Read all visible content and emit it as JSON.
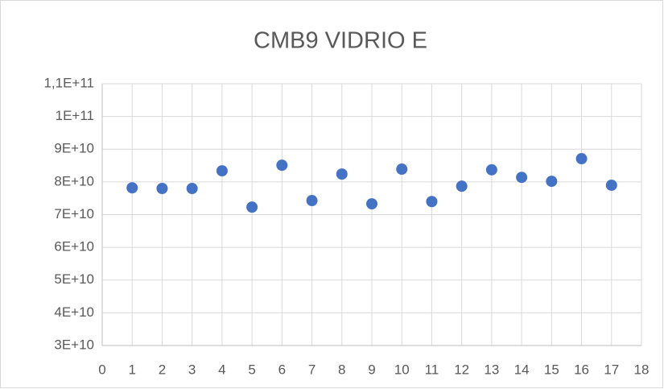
{
  "chart_data": {
    "type": "scatter",
    "title": "CMB9 VIDRIO E",
    "x": [
      1,
      2,
      3,
      4,
      5,
      6,
      7,
      8,
      9,
      10,
      11,
      12,
      13,
      14,
      15,
      16,
      17
    ],
    "values": [
      78200000000,
      78000000000,
      78000000000,
      83400000000,
      72300000000,
      85100000000,
      74300000000,
      82400000000,
      73300000000,
      83900000000,
      74000000000,
      78700000000,
      83700000000,
      81400000000,
      80200000000,
      87100000000,
      79000000000
    ],
    "color": "#4472c4",
    "xlim": [
      0,
      18
    ],
    "xticks": [
      0,
      1,
      2,
      3,
      4,
      5,
      6,
      7,
      8,
      9,
      10,
      11,
      12,
      13,
      14,
      15,
      16,
      17,
      18
    ],
    "ylim": [
      30000000000,
      110000000000
    ],
    "yticks": [
      {
        "value": 30000000000,
        "label": "3E+10"
      },
      {
        "value": 40000000000,
        "label": "4E+10"
      },
      {
        "value": 50000000000,
        "label": "5E+10"
      },
      {
        "value": 60000000000,
        "label": "6E+10"
      },
      {
        "value": 70000000000,
        "label": "7E+10"
      },
      {
        "value": 80000000000,
        "label": "8E+10"
      },
      {
        "value": 90000000000,
        "label": "9E+10"
      },
      {
        "value": 100000000000,
        "label": "1E+11"
      },
      {
        "value": 110000000000,
        "label": "1,1E+11"
      }
    ],
    "grid": true
  }
}
